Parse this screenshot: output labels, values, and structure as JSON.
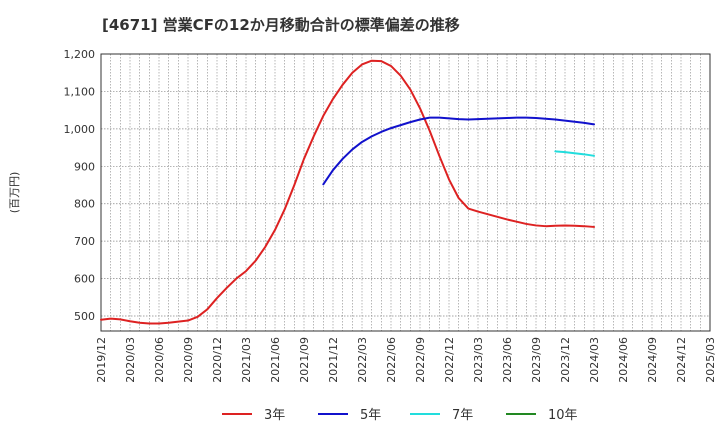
{
  "chart_data": {
    "type": "line",
    "title": "[4671]  営業CFの12か月移動合計の標準偏差の推移",
    "ylabel": "(百万円)",
    "xlabel": "",
    "ylim": [
      460,
      1200
    ],
    "yticks": [
      500,
      600,
      700,
      800,
      900,
      "1,000",
      "1,100",
      "1,200"
    ],
    "ytick_values": [
      500,
      600,
      700,
      800,
      900,
      1000,
      1100,
      1200
    ],
    "xlim": [
      "2019-12",
      "2025-03"
    ],
    "xticks": [
      "2019/12",
      "2020/03",
      "2020/06",
      "2020/09",
      "2020/12",
      "2021/03",
      "2021/06",
      "2021/09",
      "2021/12",
      "2022/03",
      "2022/06",
      "2022/09",
      "2022/12",
      "2023/03",
      "2023/06",
      "2023/09",
      "2023/12",
      "2024/03",
      "2024/06",
      "2024/09",
      "2024/12",
      "2025/03"
    ],
    "grid": true,
    "legend_position": "bottom",
    "series": [
      {
        "name": "3年",
        "color": "#dd2222",
        "x": [
          "2019-12",
          "2020-01",
          "2020-02",
          "2020-03",
          "2020-04",
          "2020-05",
          "2020-06",
          "2020-07",
          "2020-08",
          "2020-09",
          "2020-10",
          "2020-11",
          "2020-12",
          "2021-01",
          "2021-02",
          "2021-03",
          "2021-04",
          "2021-05",
          "2021-06",
          "2021-07",
          "2021-08",
          "2021-09",
          "2021-10",
          "2021-11",
          "2021-12",
          "2022-01",
          "2022-02",
          "2022-03",
          "2022-04",
          "2022-05",
          "2022-06",
          "2022-07",
          "2022-08",
          "2022-09",
          "2022-10",
          "2022-11",
          "2022-12",
          "2023-01",
          "2023-02",
          "2023-03",
          "2023-04",
          "2023-05",
          "2023-06",
          "2023-07",
          "2023-08",
          "2023-09",
          "2023-10",
          "2023-11",
          "2023-12",
          "2024-01",
          "2024-02",
          "2024-03"
        ],
        "values": [
          490,
          493,
          491,
          486,
          482,
          480,
          480,
          482,
          485,
          488,
          498,
          518,
          548,
          575,
          600,
          620,
          648,
          685,
          730,
          785,
          850,
          920,
          980,
          1035,
          1080,
          1118,
          1150,
          1172,
          1182,
          1181,
          1168,
          1142,
          1105,
          1055,
          995,
          928,
          865,
          815,
          787,
          779,
          772,
          765,
          758,
          752,
          746,
          742,
          740,
          741,
          742,
          741,
          740,
          738
        ]
      },
      {
        "name": "5年",
        "color": "#1111cc",
        "x": [
          "2021-11",
          "2021-12",
          "2022-01",
          "2022-02",
          "2022-03",
          "2022-04",
          "2022-05",
          "2022-06",
          "2022-07",
          "2022-08",
          "2022-09",
          "2022-10",
          "2022-11",
          "2022-12",
          "2023-01",
          "2023-02",
          "2023-03",
          "2023-04",
          "2023-05",
          "2023-06",
          "2023-07",
          "2023-08",
          "2023-09",
          "2023-10",
          "2023-11",
          "2023-12",
          "2024-01",
          "2024-02",
          "2024-03"
        ],
        "values": [
          852,
          890,
          920,
          945,
          965,
          980,
          992,
          1002,
          1010,
          1018,
          1025,
          1030,
          1030,
          1028,
          1026,
          1025,
          1026,
          1027,
          1028,
          1029,
          1030,
          1030,
          1029,
          1027,
          1025,
          1022,
          1019,
          1016,
          1012
        ]
      },
      {
        "name": "7年",
        "color": "#22dddd",
        "x": [
          "2023-11",
          "2023-12",
          "2024-01",
          "2024-02",
          "2024-03"
        ],
        "values": [
          940,
          938,
          935,
          932,
          928
        ]
      },
      {
        "name": "10年",
        "color": "#228822",
        "x": [],
        "values": []
      }
    ]
  }
}
